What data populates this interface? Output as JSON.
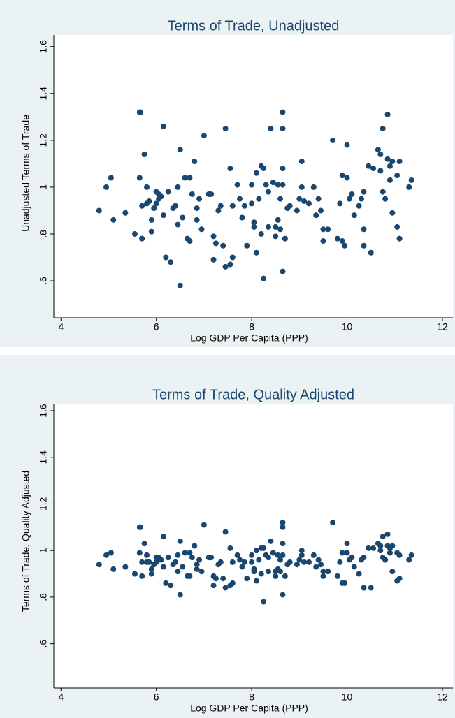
{
  "chart_data": [
    {
      "type": "scatter",
      "title": "Terms of Trade, Unadjusted",
      "xlabel": "Log GDP Per Capita (PPP)",
      "ylabel": "Unadjusted Terms of Trade",
      "color": "#1a476f",
      "xlim": [
        3.85,
        12.22
      ],
      "ylim": [
        0.442,
        1.65
      ],
      "xticks": [
        4,
        6,
        8,
        10,
        12
      ],
      "yticks": [
        {
          "value": 0.6,
          "label": ".6"
        },
        {
          "value": 0.8,
          "label": ".8"
        },
        1,
        1.2,
        1.4,
        1.6
      ],
      "x": [
        4.8,
        4.95,
        5.05,
        5.1,
        5.35,
        5.55,
        5.65,
        5.67,
        5.65,
        5.7,
        5.7,
        5.75,
        5.8,
        5.8,
        5.85,
        5.9,
        5.9,
        5.95,
        6.0,
        6.0,
        6.05,
        6.05,
        6.1,
        6.15,
        6.15,
        6.2,
        6.25,
        6.3,
        6.35,
        6.4,
        6.45,
        6.45,
        6.5,
        6.5,
        6.55,
        6.6,
        6.65,
        6.7,
        6.7,
        6.75,
        6.8,
        6.85,
        6.85,
        6.9,
        6.95,
        7.0,
        7.1,
        7.15,
        7.2,
        7.2,
        7.25,
        7.3,
        7.35,
        7.4,
        7.45,
        7.45,
        7.55,
        7.55,
        7.6,
        7.6,
        7.7,
        7.75,
        7.8,
        7.85,
        7.9,
        8.0,
        8.0,
        8.05,
        8.05,
        8.1,
        8.1,
        8.15,
        8.2,
        8.2,
        8.25,
        8.25,
        8.3,
        8.35,
        8.35,
        8.4,
        8.45,
        8.5,
        8.5,
        8.55,
        8.55,
        8.6,
        8.6,
        8.65,
        8.65,
        8.65,
        8.65,
        8.65,
        8.7,
        8.75,
        8.8,
        8.95,
        9.0,
        9.05,
        9.05,
        9.1,
        9.2,
        9.3,
        9.35,
        9.4,
        9.45,
        9.5,
        9.5,
        9.6,
        9.7,
        9.8,
        9.85,
        9.9,
        9.9,
        9.95,
        10.0,
        10.0,
        10.05,
        10.1,
        10.15,
        10.25,
        10.3,
        10.35,
        10.35,
        10.35,
        10.45,
        10.5,
        10.55,
        10.65,
        10.7,
        10.7,
        10.75,
        10.75,
        10.8,
        10.85,
        10.9,
        10.9,
        10.95,
        11.05,
        11.05,
        11.1,
        10.85,
        10.95,
        11.1,
        11.3,
        11.35
      ],
      "y": [
        0.9,
        1.0,
        1.04,
        0.86,
        0.89,
        0.8,
        1.32,
        1.32,
        1.04,
        0.92,
        0.78,
        1.14,
        1.0,
        0.93,
        0.94,
        0.86,
        0.81,
        0.91,
        0.93,
        0.98,
        0.97,
        0.95,
        0.96,
        0.88,
        1.26,
        0.7,
        0.98,
        0.68,
        0.91,
        0.92,
        1.0,
        0.84,
        1.16,
        0.58,
        0.87,
        1.04,
        0.78,
        0.77,
        1.04,
        0.97,
        1.11,
        0.91,
        0.86,
        0.95,
        0.82,
        1.22,
        0.97,
        0.97,
        0.79,
        0.69,
        0.76,
        0.9,
        0.92,
        0.75,
        1.25,
        0.66,
        0.67,
        1.08,
        0.7,
        0.92,
        1.01,
        0.95,
        0.87,
        0.92,
        0.75,
        1.01,
        0.93,
        0.85,
        0.83,
        1.06,
        0.72,
        0.95,
        0.8,
        1.09,
        1.08,
        0.61,
        1.01,
        0.98,
        0.83,
        1.25,
        1.02,
        0.83,
        0.79,
        0.86,
        1.01,
        0.95,
        0.82,
        1.32,
        1.25,
        1.08,
        1.01,
        0.64,
        0.78,
        0.91,
        0.92,
        0.9,
        0.95,
        1.0,
        1.11,
        0.94,
        0.93,
        1.0,
        0.88,
        0.95,
        0.9,
        0.77,
        0.82,
        0.82,
        1.2,
        0.78,
        0.93,
        1.05,
        0.77,
        0.75,
        1.04,
        1.18,
        0.95,
        0.97,
        0.88,
        0.92,
        0.95,
        0.98,
        0.82,
        0.75,
        1.09,
        0.72,
        1.08,
        1.16,
        1.14,
        1.07,
        1.25,
        0.98,
        0.95,
        1.12,
        1.09,
        1.03,
        1.11,
        1.05,
        0.83,
        1.11,
        1.31,
        0.89,
        0.78,
        1.0,
        1.03
      ]
    },
    {
      "type": "scatter",
      "title": "Terms of Trade, Quality Adjusted",
      "xlabel": "Log GDP Per Capita (PPP)",
      "ylabel": "Terms of Trade, Quality Adjusted",
      "color": "#1a476f",
      "xlim": [
        3.85,
        12.22
      ],
      "ylim": [
        0.41,
        1.63
      ],
      "xticks": [
        4,
        6,
        8,
        10,
        12
      ],
      "yticks": [
        {
          "value": 0.6,
          "label": ".6"
        },
        {
          "value": 0.8,
          "label": ".8"
        },
        1,
        1.2,
        1.4,
        1.6
      ],
      "x": [
        4.8,
        4.95,
        5.05,
        5.1,
        5.35,
        5.55,
        5.65,
        5.67,
        5.65,
        5.7,
        5.7,
        5.75,
        5.8,
        5.8,
        5.85,
        5.9,
        5.9,
        5.95,
        6.0,
        6.0,
        6.05,
        6.05,
        6.1,
        6.15,
        6.15,
        6.2,
        6.25,
        6.3,
        6.35,
        6.4,
        6.45,
        6.45,
        6.5,
        6.5,
        6.55,
        6.6,
        6.65,
        6.7,
        6.7,
        6.75,
        6.8,
        6.85,
        6.85,
        6.9,
        6.95,
        7.0,
        7.1,
        7.15,
        7.2,
        7.2,
        7.25,
        7.3,
        7.35,
        7.4,
        7.45,
        7.45,
        7.55,
        7.55,
        7.6,
        7.6,
        7.7,
        7.75,
        7.8,
        7.85,
        7.9,
        8.0,
        8.0,
        8.05,
        8.05,
        8.1,
        8.1,
        8.15,
        8.2,
        8.2,
        8.25,
        8.25,
        8.3,
        8.35,
        8.35,
        8.4,
        8.45,
        8.5,
        8.5,
        8.55,
        8.55,
        8.6,
        8.6,
        8.65,
        8.65,
        8.65,
        8.65,
        8.65,
        8.7,
        8.75,
        8.8,
        8.95,
        9.0,
        9.05,
        9.05,
        9.1,
        9.2,
        9.3,
        9.35,
        9.4,
        9.45,
        9.5,
        9.5,
        9.6,
        9.7,
        9.8,
        9.85,
        9.9,
        9.9,
        9.95,
        10.0,
        10.0,
        10.05,
        10.1,
        10.15,
        10.25,
        10.3,
        10.35,
        10.35,
        10.35,
        10.45,
        10.5,
        10.55,
        10.65,
        10.7,
        10.7,
        10.75,
        10.75,
        10.8,
        10.85,
        10.9,
        10.9,
        10.95,
        11.05,
        11.05,
        11.1,
        10.85,
        10.95,
        11.1,
        11.3,
        11.35
      ],
      "y": [
        0.94,
        0.98,
        0.99,
        0.92,
        0.93,
        0.9,
        1.1,
        1.1,
        0.99,
        0.95,
        0.89,
        1.03,
        0.98,
        0.95,
        0.95,
        0.92,
        0.9,
        0.94,
        0.95,
        0.97,
        0.97,
        0.96,
        0.96,
        0.93,
        1.06,
        0.86,
        0.97,
        0.85,
        0.94,
        0.95,
        0.98,
        0.91,
        1.04,
        0.81,
        0.93,
        0.99,
        0.89,
        0.89,
        0.99,
        0.97,
        1.02,
        0.94,
        0.92,
        0.96,
        0.91,
        1.11,
        0.97,
        0.97,
        0.89,
        0.85,
        0.88,
        0.94,
        0.95,
        0.88,
        1.08,
        0.84,
        0.85,
        1.01,
        0.86,
        0.95,
        0.98,
        0.96,
        0.93,
        0.95,
        0.88,
        0.98,
        0.95,
        0.92,
        0.91,
        1.0,
        0.87,
        0.96,
        0.9,
        1.01,
        1.01,
        0.78,
        0.98,
        0.97,
        0.91,
        1.04,
        0.99,
        0.91,
        0.89,
        0.92,
        0.98,
        0.96,
        0.91,
        1.12,
        1.1,
        1.03,
        0.98,
        0.81,
        0.89,
        0.94,
        0.95,
        0.94,
        0.96,
        0.98,
        1.0,
        0.95,
        0.95,
        0.98,
        0.93,
        0.96,
        0.94,
        0.89,
        0.91,
        0.91,
        1.12,
        0.89,
        0.95,
        0.99,
        0.86,
        0.86,
        0.99,
        1.03,
        0.96,
        0.97,
        0.93,
        0.9,
        0.96,
        0.97,
        0.84,
        0.84,
        1.01,
        0.84,
        1.01,
        1.03,
        1.02,
        1.0,
        1.06,
        0.97,
        0.96,
        1.02,
        1.01,
        0.99,
        1.02,
        0.99,
        0.87,
        0.98,
        1.07,
        0.91,
        0.88,
        0.96,
        0.98
      ]
    }
  ]
}
